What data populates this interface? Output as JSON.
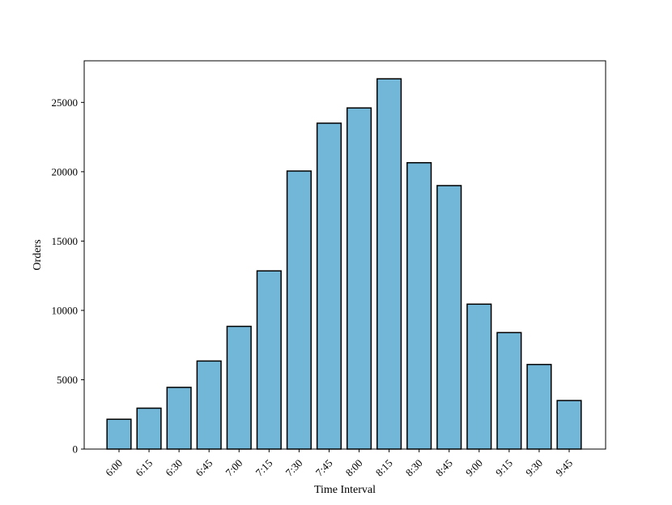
{
  "chart_data": {
    "type": "bar",
    "title": "",
    "xlabel": "Time Interval",
    "ylabel": "Orders",
    "categories": [
      "6:00",
      "6:15",
      "6:30",
      "6:45",
      "7:00",
      "7:15",
      "7:30",
      "7:45",
      "8:00",
      "8:15",
      "8:30",
      "8:45",
      "9:00",
      "9:15",
      "9:30",
      "9:45"
    ],
    "values": [
      2150,
      2950,
      4450,
      6350,
      8850,
      12850,
      20050,
      23500,
      24600,
      26700,
      20650,
      19000,
      10450,
      8400,
      6100,
      3500
    ],
    "ylim": [
      0,
      28000
    ],
    "yticks": [
      0,
      5000,
      10000,
      15000,
      20000,
      25000
    ],
    "grid": false,
    "legend": "none",
    "colors": {
      "bar_fill": "#72b6d8",
      "bar_edge": "#000000",
      "axis": "#000000"
    }
  }
}
